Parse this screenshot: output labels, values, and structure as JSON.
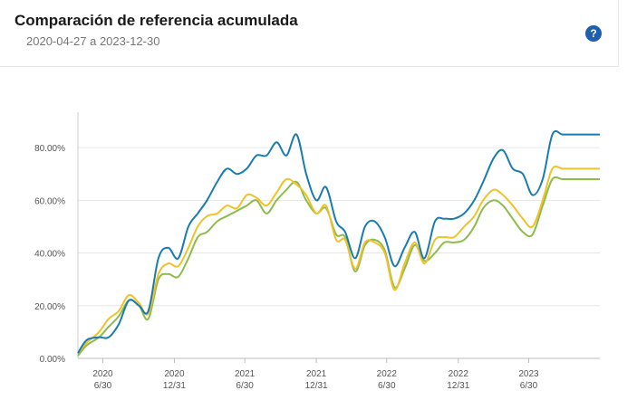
{
  "header": {
    "title": "Comparación de referencia acumulada",
    "date_range": "2020-04-27 a 2023-12-30",
    "help_icon": "question-circle-icon"
  },
  "chart_data": {
    "type": "line",
    "title": "Comparación de referencia acumulada",
    "subtitle": "2020-04-27 a 2023-12-30",
    "xlabel": "",
    "ylabel": "",
    "ylim": [
      0,
      90
    ],
    "y_ticks": [
      "0.00%",
      "20.00%",
      "40.00%",
      "60.00%",
      "80.00%"
    ],
    "y_tick_values": [
      0,
      20,
      40,
      60,
      80
    ],
    "x_ticks": [
      {
        "x": "2020-06-30",
        "line1": "2020",
        "line2": "6/30"
      },
      {
        "x": "2020-12-31",
        "line1": "2020",
        "line2": "12/31"
      },
      {
        "x": "2021-06-30",
        "line1": "2021",
        "line2": "6/30"
      },
      {
        "x": "2021-12-31",
        "line1": "2021",
        "line2": "12/31"
      },
      {
        "x": "2022-06-30",
        "line1": "2022",
        "line2": "6/30"
      },
      {
        "x": "2022-12-31",
        "line1": "2022",
        "line2": "12/31"
      },
      {
        "x": "2023-06-30",
        "line1": "2023",
        "line2": "6/30"
      }
    ],
    "x_range": [
      "2020-04-27",
      "2023-12-30"
    ],
    "grid": "horizontal",
    "x": [
      "2020-04-27",
      "2020-05-20",
      "2020-06-20",
      "2020-07-15",
      "2020-08-10",
      "2020-09-05",
      "2020-10-01",
      "2020-10-25",
      "2020-11-20",
      "2020-12-15",
      "2021-01-10",
      "2021-02-05",
      "2021-03-01",
      "2021-03-25",
      "2021-04-20",
      "2021-05-15",
      "2021-06-10",
      "2021-07-05",
      "2021-07-30",
      "2021-08-25",
      "2021-09-20",
      "2021-10-15",
      "2021-11-10",
      "2021-12-05",
      "2021-12-31",
      "2022-01-25",
      "2022-02-20",
      "2022-03-15",
      "2022-04-10",
      "2022-05-05",
      "2022-05-30",
      "2022-06-25",
      "2022-07-20",
      "2022-08-15",
      "2022-09-10",
      "2022-10-05",
      "2022-11-01",
      "2022-11-25",
      "2022-12-20",
      "2023-01-15",
      "2023-02-10",
      "2023-03-05",
      "2023-04-01",
      "2023-04-25",
      "2023-05-20",
      "2023-06-15",
      "2023-07-10",
      "2023-08-05",
      "2023-08-30",
      "2023-09-25",
      "2023-10-20",
      "2023-11-15",
      "2023-12-10",
      "2023-12-30"
    ],
    "series": [
      {
        "color": "#1a7bb0",
        "values": [
          2,
          7,
          8,
          8,
          13,
          22,
          20,
          18,
          38,
          42,
          38,
          50,
          55,
          60,
          67,
          72,
          70,
          72,
          77,
          77,
          82,
          77,
          85,
          70,
          60,
          65,
          52,
          48,
          38,
          50,
          52,
          46,
          35,
          42,
          48,
          38,
          52,
          53,
          53,
          55,
          60,
          67,
          76,
          79,
          72,
          70,
          62,
          68,
          85,
          85,
          85,
          85,
          85,
          85
        ]
      },
      {
        "color": "#f0c229",
        "values": [
          2,
          6,
          10,
          15,
          18,
          24,
          21,
          17,
          32,
          36,
          35,
          42,
          50,
          54,
          55,
          58,
          57,
          62,
          61,
          58,
          63,
          68,
          66,
          62,
          55,
          58,
          45,
          45,
          34,
          44,
          44,
          40,
          26,
          36,
          44,
          36,
          45,
          46,
          46,
          50,
          54,
          60,
          64,
          62,
          58,
          53,
          50,
          60,
          72,
          72,
          72,
          72,
          72,
          72
        ]
      },
      {
        "color": "#8dbb4c",
        "values": [
          1,
          5,
          8,
          12,
          16,
          22,
          20,
          15,
          30,
          32,
          31,
          38,
          46,
          48,
          52,
          54,
          56,
          58,
          60,
          55,
          60,
          64,
          67,
          60,
          55,
          57,
          47,
          46,
          33,
          43,
          45,
          41,
          27,
          34,
          43,
          37,
          40,
          44,
          44,
          45,
          50,
          57,
          60,
          58,
          53,
          48,
          47,
          58,
          68,
          68,
          68,
          68,
          68,
          68
        ]
      }
    ]
  }
}
